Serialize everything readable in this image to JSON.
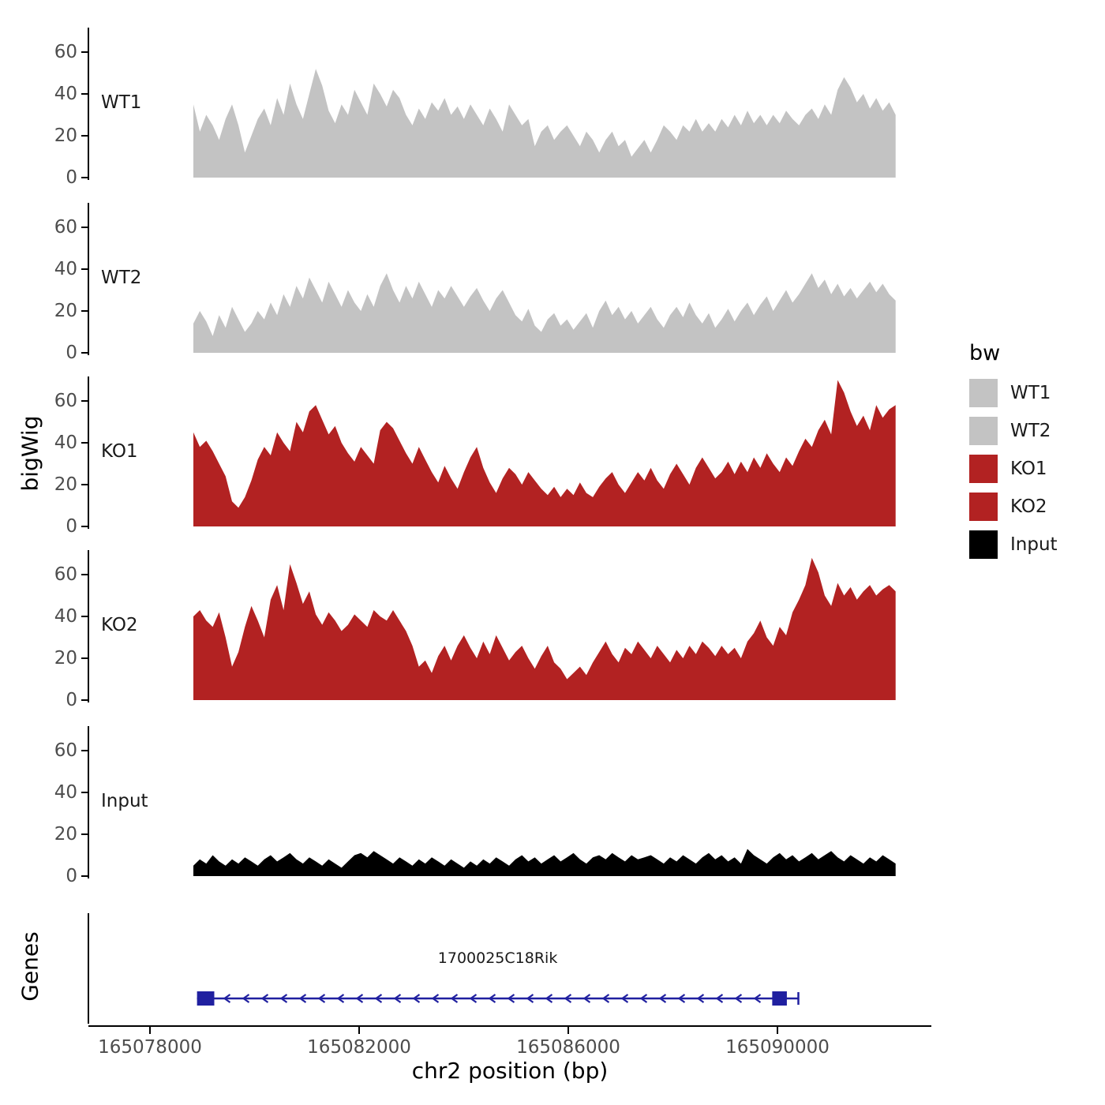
{
  "chart_data": {
    "type": "area",
    "title": "",
    "ylabel": "bigWig",
    "genes_panel_label": "Genes",
    "xlabel": "chr2 position (bp)",
    "x_axis": {
      "ticks": [
        165078000,
        165082000,
        165086000,
        165090000
      ],
      "tick_labels": [
        "165078000",
        "165082000",
        "165086000",
        "165090000"
      ],
      "min": 165076800,
      "max": 165092900
    },
    "y_axis": {
      "ticks": [
        0,
        20,
        40,
        60
      ],
      "tick_labels": [
        "0",
        "20",
        "40",
        "60"
      ],
      "max_display": 72
    },
    "data_range": {
      "start": 165078830,
      "end": 165092260
    },
    "tracks": [
      {
        "name": "WT1",
        "color": "#c3c3c3",
        "values": [
          35,
          22,
          30,
          25,
          18,
          28,
          35,
          25,
          12,
          20,
          28,
          33,
          25,
          38,
          30,
          45,
          35,
          28,
          40,
          52,
          44,
          32,
          26,
          35,
          30,
          42,
          36,
          30,
          45,
          40,
          34,
          42,
          38,
          30,
          25,
          33,
          28,
          36,
          32,
          38,
          30,
          34,
          28,
          35,
          30,
          25,
          33,
          28,
          22,
          35,
          30,
          25,
          28,
          15,
          22,
          25,
          18,
          22,
          25,
          20,
          15,
          22,
          18,
          12,
          18,
          22,
          15,
          18,
          10,
          14,
          18,
          12,
          18,
          25,
          22,
          18,
          25,
          22,
          28,
          22,
          26,
          22,
          28,
          24,
          30,
          25,
          32,
          26,
          30,
          25,
          30,
          26,
          32,
          28,
          25,
          30,
          33,
          28,
          35,
          30,
          42,
          48,
          43,
          36,
          40,
          33,
          38,
          32,
          36,
          30
        ]
      },
      {
        "name": "WT2",
        "color": "#c3c3c3",
        "values": [
          14,
          20,
          15,
          8,
          18,
          12,
          22,
          16,
          10,
          14,
          20,
          16,
          24,
          18,
          28,
          22,
          32,
          26,
          36,
          30,
          24,
          34,
          28,
          22,
          30,
          24,
          20,
          28,
          22,
          32,
          38,
          30,
          24,
          32,
          26,
          34,
          28,
          22,
          30,
          26,
          32,
          27,
          22,
          27,
          31,
          25,
          20,
          26,
          30,
          24,
          18,
          15,
          21,
          13,
          10,
          16,
          19,
          13,
          16,
          11,
          15,
          19,
          12,
          20,
          25,
          18,
          22,
          16,
          20,
          14,
          18,
          22,
          16,
          12,
          18,
          22,
          17,
          24,
          18,
          14,
          19,
          12,
          16,
          21,
          15,
          20,
          24,
          18,
          23,
          27,
          20,
          25,
          30,
          24,
          28,
          33,
          38,
          31,
          35,
          28,
          33,
          27,
          31,
          26,
          30,
          34,
          29,
          33,
          28,
          25
        ]
      },
      {
        "name": "KO1",
        "color": "#b22222",
        "values": [
          45,
          38,
          41,
          36,
          30,
          24,
          12,
          9,
          14,
          22,
          32,
          38,
          34,
          45,
          40,
          36,
          50,
          45,
          55,
          58,
          51,
          44,
          48,
          40,
          35,
          31,
          38,
          34,
          30,
          46,
          50,
          47,
          41,
          35,
          30,
          38,
          32,
          26,
          21,
          29,
          23,
          18,
          26,
          33,
          38,
          28,
          21,
          16,
          23,
          28,
          25,
          20,
          26,
          22,
          18,
          15,
          19,
          14,
          18,
          15,
          21,
          16,
          14,
          19,
          23,
          26,
          20,
          16,
          21,
          26,
          22,
          28,
          22,
          18,
          25,
          30,
          25,
          20,
          28,
          33,
          28,
          23,
          26,
          31,
          25,
          31,
          26,
          33,
          28,
          35,
          30,
          26,
          33,
          29,
          36,
          42,
          38,
          46,
          51,
          44,
          70,
          64,
          55,
          48,
          53,
          46,
          58,
          52,
          56,
          58
        ]
      },
      {
        "name": "KO2",
        "color": "#b22222",
        "values": [
          40,
          43,
          38,
          35,
          42,
          30,
          16,
          23,
          35,
          45,
          38,
          30,
          48,
          55,
          43,
          65,
          56,
          46,
          52,
          41,
          36,
          42,
          38,
          33,
          36,
          41,
          38,
          35,
          43,
          40,
          38,
          43,
          38,
          33,
          26,
          16,
          19,
          13,
          21,
          26,
          19,
          26,
          31,
          25,
          20,
          28,
          22,
          31,
          25,
          19,
          23,
          26,
          20,
          15,
          21,
          26,
          18,
          15,
          10,
          13,
          16,
          12,
          18,
          23,
          28,
          22,
          18,
          25,
          22,
          28,
          24,
          20,
          26,
          22,
          18,
          24,
          20,
          26,
          22,
          28,
          25,
          21,
          26,
          22,
          25,
          20,
          28,
          32,
          38,
          30,
          26,
          35,
          31,
          42,
          48,
          55,
          68,
          61,
          50,
          45,
          56,
          50,
          54,
          48,
          52,
          55,
          50,
          53,
          55,
          52
        ]
      },
      {
        "name": "Input",
        "color": "#000000",
        "values": [
          5,
          8,
          6,
          10,
          7,
          5,
          8,
          6,
          9,
          7,
          5,
          8,
          10,
          7,
          9,
          11,
          8,
          6,
          9,
          7,
          5,
          8,
          6,
          4,
          7,
          10,
          11,
          9,
          12,
          10,
          8,
          6,
          9,
          7,
          5,
          8,
          6,
          9,
          7,
          5,
          8,
          6,
          4,
          7,
          5,
          8,
          6,
          9,
          7,
          5,
          8,
          10,
          7,
          9,
          6,
          8,
          10,
          7,
          9,
          11,
          8,
          6,
          9,
          10,
          8,
          11,
          9,
          7,
          10,
          8,
          9,
          10,
          8,
          6,
          9,
          7,
          10,
          8,
          6,
          9,
          11,
          8,
          10,
          7,
          9,
          6,
          13,
          10,
          8,
          6,
          9,
          11,
          8,
          10,
          7,
          9,
          11,
          8,
          10,
          12,
          9,
          7,
          10,
          8,
          6,
          9,
          7,
          10,
          8,
          6
        ]
      }
    ],
    "genes": [
      {
        "label": "1700025C18Rik",
        "start": 165078900,
        "end": 165090400,
        "strand": "-",
        "color": "#2020a0",
        "exons": [
          {
            "start": 165078900,
            "end": 165079230
          },
          {
            "start": 165089900,
            "end": 165090180
          }
        ]
      }
    ],
    "legend": {
      "title": "bw",
      "entries": [
        {
          "label": "WT1",
          "color": "#c3c3c3"
        },
        {
          "label": "WT2",
          "color": "#c3c3c3"
        },
        {
          "label": "KO1",
          "color": "#b22222"
        },
        {
          "label": "KO2",
          "color": "#b22222"
        },
        {
          "label": "Input",
          "color": "#000000"
        }
      ]
    }
  }
}
